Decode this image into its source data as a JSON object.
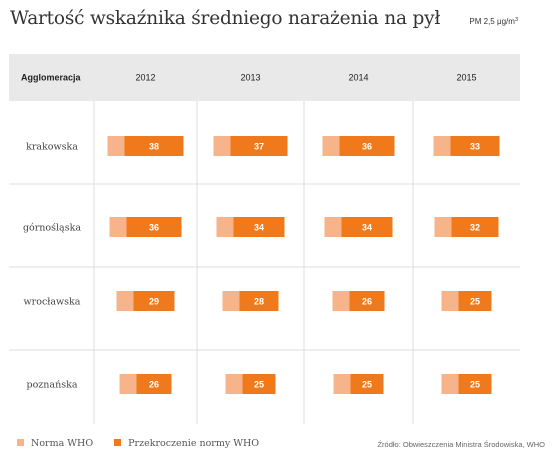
{
  "title": "Wartość wskaźnika średniego narażenia na pył",
  "unit": {
    "prefix": "PM 2,5 ",
    "base": "μg/m",
    "exp": "3"
  },
  "colors": {
    "norm": "#f7b48a",
    "excess": "#f07a1b",
    "header_bg": "#e9e9e9",
    "grid": "#dddddd"
  },
  "chart_data": {
    "type": "bar",
    "layout": "stacked-horizontal-table",
    "row_header": "Agglomeracja",
    "categories": [
      "krakowska",
      "górnośląska",
      "wrocławska",
      "poznańska"
    ],
    "years": [
      "2012",
      "2013",
      "2014",
      "2015"
    ],
    "norm_value": 10,
    "values": [
      [
        38,
        37,
        36,
        33
      ],
      [
        36,
        34,
        34,
        32
      ],
      [
        29,
        28,
        26,
        25
      ],
      [
        26,
        25,
        25,
        25
      ]
    ],
    "legend": [
      "Norma WHO",
      "Przekroczenie normy WHO"
    ],
    "source": "Źródło: Obwieszczenia Ministra Środowiska, WHO"
  }
}
